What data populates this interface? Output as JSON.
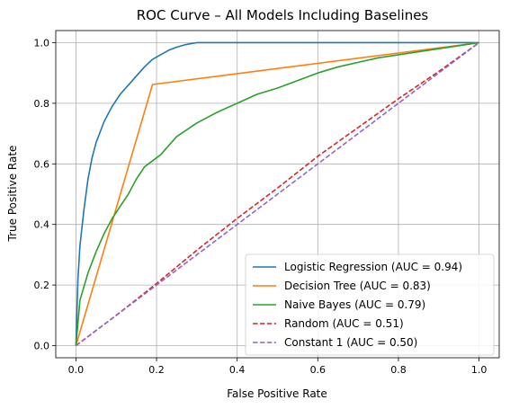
{
  "chart_data": {
    "type": "line",
    "title": "ROC Curve – All Models Including Baselines",
    "xlabel": "False Positive Rate",
    "ylabel": "True Positive Rate",
    "xlim": [
      -0.05,
      1.05
    ],
    "ylim": [
      -0.04,
      1.04
    ],
    "xticks": [
      "0.0",
      "0.2",
      "0.4",
      "0.6",
      "0.8",
      "1.0"
    ],
    "yticks": [
      "0.0",
      "0.2",
      "0.4",
      "0.6",
      "0.8",
      "1.0"
    ],
    "grid": true,
    "legend_position": "bottom-right",
    "series": [
      {
        "name": "Logistic Regression (AUC = 0.94)",
        "color": "#1f77b4",
        "style": "solid",
        "x": [
          0,
          0.005,
          0.01,
          0.02,
          0.03,
          0.04,
          0.05,
          0.07,
          0.09,
          0.11,
          0.13,
          0.15,
          0.17,
          0.19,
          0.21,
          0.23,
          0.25,
          0.27,
          0.29,
          0.3,
          1.0
        ],
        "y": [
          0,
          0.22,
          0.33,
          0.45,
          0.55,
          0.62,
          0.67,
          0.74,
          0.79,
          0.83,
          0.86,
          0.89,
          0.92,
          0.945,
          0.96,
          0.975,
          0.985,
          0.993,
          0.998,
          1.0,
          1.0
        ]
      },
      {
        "name": "Decision Tree (AUC = 0.83)",
        "color": "#ff7f0e",
        "style": "solid",
        "x": [
          0,
          0.19,
          1.0
        ],
        "y": [
          0,
          0.862,
          1.0
        ]
      },
      {
        "name": "Naive Bayes (AUC = 0.79)",
        "color": "#2ca02c",
        "style": "solid",
        "x": [
          0,
          0.01,
          0.03,
          0.05,
          0.07,
          0.09,
          0.11,
          0.13,
          0.15,
          0.17,
          0.19,
          0.21,
          0.25,
          0.3,
          0.35,
          0.4,
          0.45,
          0.5,
          0.55,
          0.6,
          0.65,
          0.7,
          0.75,
          0.8,
          0.85,
          0.9,
          0.95,
          1.0
        ],
        "y": [
          0,
          0.15,
          0.24,
          0.31,
          0.37,
          0.42,
          0.46,
          0.5,
          0.55,
          0.59,
          0.61,
          0.63,
          0.69,
          0.735,
          0.77,
          0.8,
          0.83,
          0.85,
          0.875,
          0.9,
          0.92,
          0.935,
          0.95,
          0.96,
          0.97,
          0.98,
          0.99,
          1.0
        ]
      },
      {
        "name": "Random (AUC = 0.51)",
        "color": "#d62728",
        "style": "dashed",
        "x": [
          0,
          0.1,
          0.2,
          0.3,
          0.4,
          0.5,
          0.6,
          0.7,
          0.8,
          0.9,
          1.0
        ],
        "y": [
          0,
          0.1,
          0.205,
          0.315,
          0.42,
          0.52,
          0.625,
          0.72,
          0.815,
          0.905,
          1.0
        ]
      },
      {
        "name": "Constant 1 (AUC = 0.50)",
        "color": "#9467bd",
        "style": "dashed",
        "x": [
          0,
          1.0
        ],
        "y": [
          0,
          1.0
        ]
      }
    ]
  }
}
